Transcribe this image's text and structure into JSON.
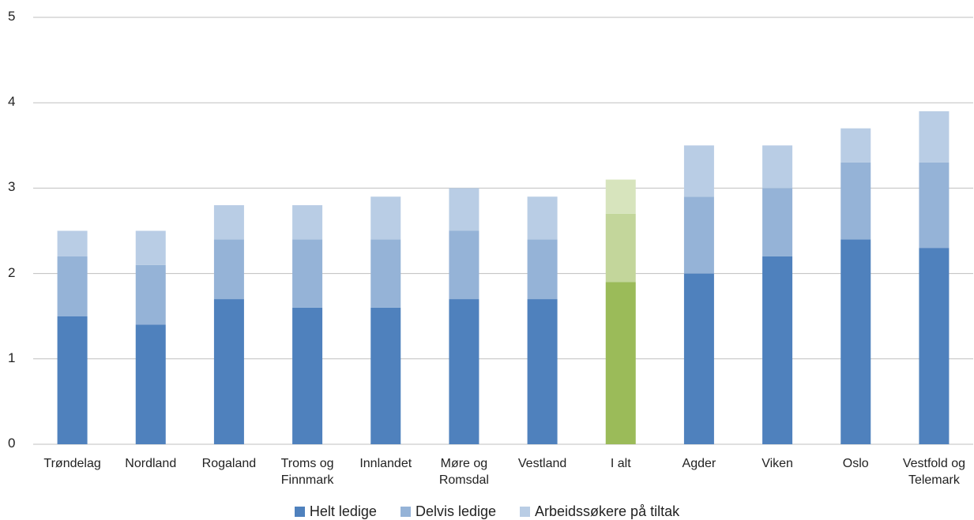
{
  "chart_data": {
    "type": "bar",
    "stacked": true,
    "categories": [
      "Trøndelag",
      "Nordland",
      "Rogaland",
      "Troms og Finnmark",
      "Innlandet",
      "Møre og Romsdal",
      "Vestland",
      "I alt",
      "Agder",
      "Viken",
      "Oslo",
      "Vestfold og Telemark"
    ],
    "series": [
      {
        "name": "Helt ledige",
        "color": "#4f81bd",
        "values": [
          1.5,
          1.4,
          1.7,
          1.6,
          1.6,
          1.7,
          1.7,
          1.9,
          2.0,
          2.2,
          2.4,
          2.3
        ]
      },
      {
        "name": "Delvis ledige",
        "color": "#95b3d7",
        "values": [
          0.7,
          0.7,
          0.7,
          0.8,
          0.8,
          0.8,
          0.7,
          0.8,
          0.9,
          0.8,
          0.9,
          1.0
        ]
      },
      {
        "name": "Arbeidssøkere på tiltak",
        "color": "#b9cde5",
        "values": [
          0.3,
          0.4,
          0.4,
          0.4,
          0.5,
          0.5,
          0.5,
          0.4,
          0.6,
          0.5,
          0.4,
          0.6
        ]
      }
    ],
    "highlight": {
      "index": 7,
      "colors": [
        "#9bbb59",
        "#c3d69b",
        "#d7e4bd"
      ]
    },
    "ylim": [
      0,
      5
    ],
    "yticks": [
      0,
      1,
      2,
      3,
      4,
      5
    ],
    "grid": true,
    "legend": "bottom"
  }
}
